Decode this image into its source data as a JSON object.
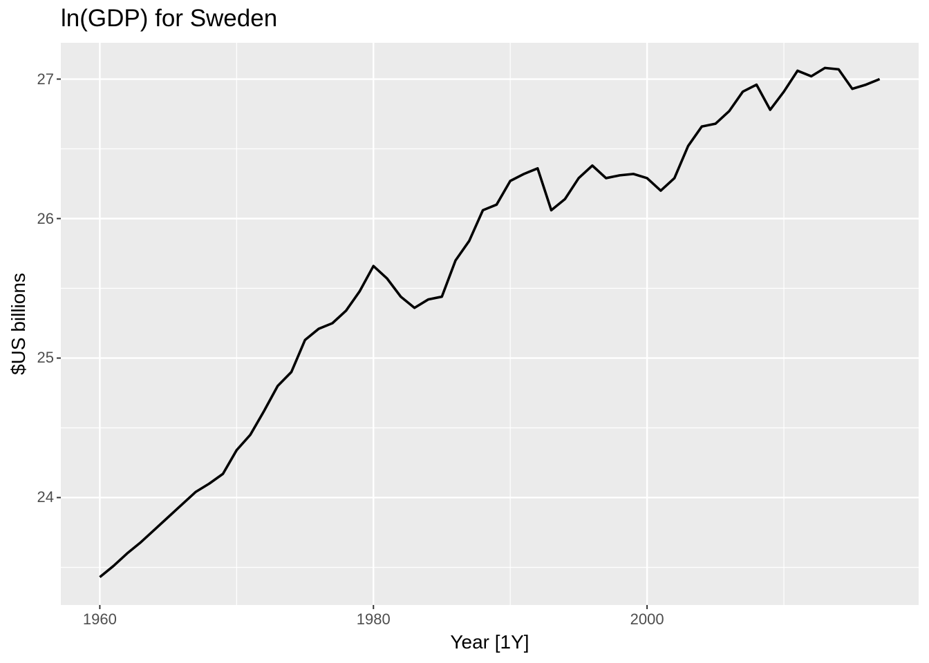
{
  "title": "ln(GDP) for Sweden",
  "axes": {
    "x": {
      "label": "Year [1Y]",
      "ticks": [
        1960,
        1980,
        2000
      ],
      "minor_ticks": [
        1970,
        1990,
        2010
      ],
      "domain": [
        1957.15,
        2019.85
      ]
    },
    "y": {
      "label": "$US billions",
      "ticks": [
        24,
        25,
        26,
        27
      ],
      "minor_ticks": [
        23.5,
        24.5,
        25.5,
        26.5
      ],
      "domain": [
        23.23,
        27.26
      ]
    }
  },
  "style": {
    "panel_bg": "#EBEBEB",
    "grid_color": "#FFFFFF",
    "major_grid_width": 2.4,
    "minor_grid_width": 1.2,
    "line_color": "#000000",
    "line_width": 3.6,
    "tick_mark_color": "#333333",
    "tick_label_color": "#4D4D4D",
    "title_color": "#000000"
  },
  "chart_data": {
    "type": "line",
    "title": "ln(GDP) for Sweden",
    "xlabel": "Year [1Y]",
    "ylabel": "$US billions",
    "series_name": "ln(GDP) Sweden",
    "x": [
      1960,
      1961,
      1962,
      1963,
      1964,
      1965,
      1966,
      1967,
      1968,
      1969,
      1970,
      1971,
      1972,
      1973,
      1974,
      1975,
      1976,
      1977,
      1978,
      1979,
      1980,
      1981,
      1982,
      1983,
      1984,
      1985,
      1986,
      1987,
      1988,
      1989,
      1990,
      1991,
      1992,
      1993,
      1994,
      1995,
      1996,
      1997,
      1998,
      1999,
      2000,
      2001,
      2002,
      2003,
      2004,
      2005,
      2006,
      2007,
      2008,
      2009,
      2010,
      2011,
      2012,
      2013,
      2014,
      2015,
      2016,
      2017
    ],
    "y": [
      23.43,
      23.51,
      23.6,
      23.68,
      23.77,
      23.86,
      23.95,
      24.04,
      24.1,
      24.17,
      24.34,
      24.45,
      24.62,
      24.8,
      24.9,
      25.13,
      25.21,
      25.25,
      25.34,
      25.48,
      25.66,
      25.57,
      25.44,
      25.36,
      25.42,
      25.44,
      25.7,
      25.84,
      26.06,
      26.1,
      26.27,
      26.32,
      26.36,
      26.06,
      26.14,
      26.29,
      26.38,
      26.29,
      26.31,
      26.32,
      26.29,
      26.2,
      26.29,
      26.52,
      26.66,
      26.68,
      26.77,
      26.91,
      26.96,
      26.78,
      26.91,
      27.06,
      27.02,
      27.08,
      27.07,
      26.93,
      26.96,
      27.0
    ],
    "xlim": [
      1957.15,
      2019.85
    ],
    "ylim": [
      23.23,
      27.26
    ],
    "grid": "on",
    "legend": "none"
  }
}
